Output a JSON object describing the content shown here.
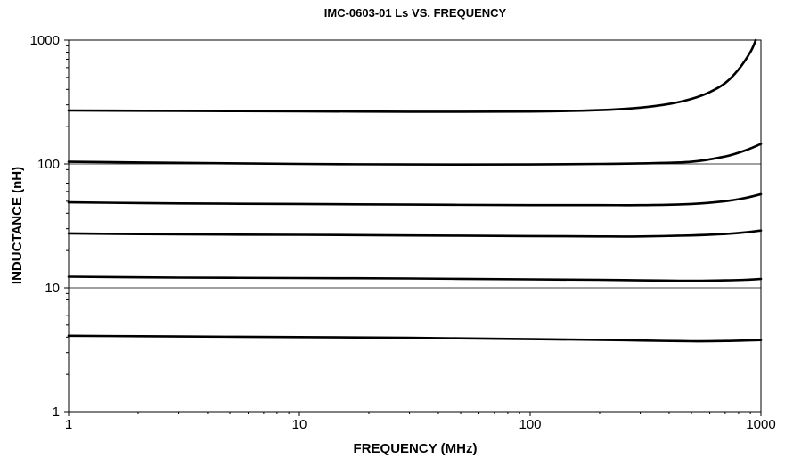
{
  "chart_data": {
    "type": "line",
    "title": "IMC-0603-01 Ls VS. FREQUENCY",
    "xlabel": "FREQUENCY (MHz)",
    "ylabel": "INDUCTANCE (nH)",
    "xscale": "log",
    "yscale": "log",
    "xlim": [
      1,
      1000
    ],
    "ylim": [
      1,
      1000
    ],
    "xticks": [
      "1",
      "10",
      "100",
      "1000"
    ],
    "yticks": [
      "1",
      "10",
      "100",
      "1000"
    ],
    "grid": "horizontal major lines at 10 and 100",
    "legend": "none",
    "line_color": "#000000",
    "series": [
      {
        "x": [
          1,
          3,
          10,
          30,
          100,
          200,
          300,
          400,
          500,
          600,
          700,
          800,
          900,
          950
        ],
        "values": [
          270,
          268,
          266,
          264,
          265,
          272,
          285,
          305,
          335,
          380,
          450,
          580,
          800,
          1000
        ]
      },
      {
        "x": [
          1,
          3,
          10,
          30,
          100,
          200,
          300,
          500,
          700,
          850,
          1000
        ],
        "values": [
          104,
          102,
          100,
          99,
          99,
          100,
          101,
          104,
          115,
          128,
          145
        ]
      },
      {
        "x": [
          1,
          3,
          10,
          30,
          100,
          200,
          300,
          500,
          700,
          850,
          1000
        ],
        "values": [
          49,
          48,
          47.5,
          47,
          46.5,
          46.5,
          46.5,
          47.5,
          50,
          53,
          57
        ]
      },
      {
        "x": [
          1,
          3,
          10,
          30,
          100,
          200,
          300,
          500,
          700,
          850,
          1000
        ],
        "values": [
          27.5,
          27,
          26.8,
          26.5,
          26.2,
          26,
          26,
          26.5,
          27.2,
          28,
          29
        ]
      },
      {
        "x": [
          1,
          3,
          10,
          30,
          100,
          200,
          300,
          500,
          700,
          850,
          1000
        ],
        "values": [
          12.3,
          12.1,
          12,
          11.9,
          11.7,
          11.6,
          11.5,
          11.4,
          11.5,
          11.6,
          11.8
        ]
      },
      {
        "x": [
          1,
          3,
          10,
          30,
          100,
          200,
          300,
          500,
          700,
          850,
          1000
        ],
        "values": [
          4.1,
          4.05,
          4.0,
          3.95,
          3.85,
          3.8,
          3.75,
          3.7,
          3.72,
          3.75,
          3.78
        ]
      }
    ]
  }
}
